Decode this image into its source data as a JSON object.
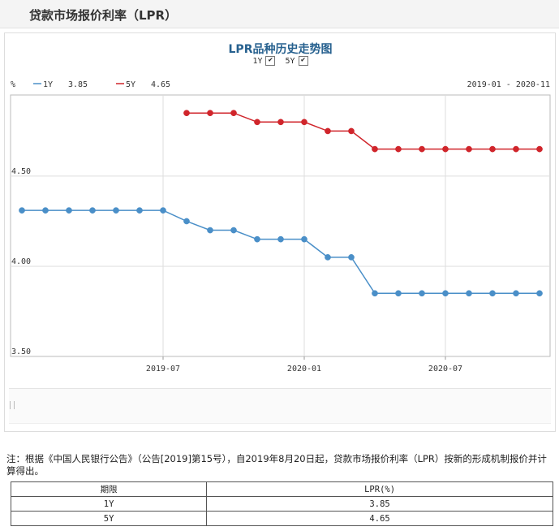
{
  "page_title": "贷款市场报价利率（LPR）",
  "chart_data": {
    "type": "line",
    "title": "LPR品种历史走势图",
    "toggles": [
      {
        "label": "1Y",
        "checked": true
      },
      {
        "label": "5Y",
        "checked": true
      }
    ],
    "ylabel": "%",
    "date_range_label": "2019-01 - 2020-11",
    "ylim": [
      3.5,
      4.95
    ],
    "y_ticks": [
      "3.50",
      "4.00",
      "4.50"
    ],
    "x_ticks": [
      "2019-07",
      "2020-01",
      "2020-07"
    ],
    "grid": true,
    "legend_position": "top-left",
    "x": [
      "2019-01",
      "2019-02",
      "2019-03",
      "2019-04",
      "2019-05",
      "2019-06",
      "2019-07",
      "2019-08",
      "2019-09",
      "2019-10",
      "2019-11",
      "2019-12",
      "2020-01",
      "2020-02",
      "2020-03",
      "2020-04",
      "2020-05",
      "2020-06",
      "2020-07",
      "2020-08",
      "2020-09",
      "2020-10",
      "2020-11"
    ],
    "series": [
      {
        "name": "1Y",
        "latest": "3.85",
        "color": "#4a8fc8",
        "values": [
          4.31,
          4.31,
          4.31,
          4.31,
          4.31,
          4.31,
          4.31,
          4.25,
          4.2,
          4.2,
          4.15,
          4.15,
          4.15,
          4.05,
          4.05,
          3.85,
          3.85,
          3.85,
          3.85,
          3.85,
          3.85,
          3.85,
          3.85
        ]
      },
      {
        "name": "5Y",
        "latest": "4.65",
        "color": "#d0252b",
        "values": [
          null,
          null,
          null,
          null,
          null,
          null,
          null,
          4.85,
          4.85,
          4.85,
          4.8,
          4.8,
          4.8,
          4.75,
          4.75,
          4.65,
          4.65,
          4.65,
          4.65,
          4.65,
          4.65,
          4.65,
          4.65
        ]
      }
    ]
  },
  "note": "注：根据《中国人民银行公告》（公告[2019]第15号），自2019年8月20日起，贷款市场报价利率（LPR）按新的形成机制报价并计算得出。",
  "table": {
    "headers": [
      "期限",
      "LPR(%)"
    ],
    "rows": [
      [
        "1Y",
        "3.85"
      ],
      [
        "5Y",
        "4.65"
      ]
    ]
  }
}
